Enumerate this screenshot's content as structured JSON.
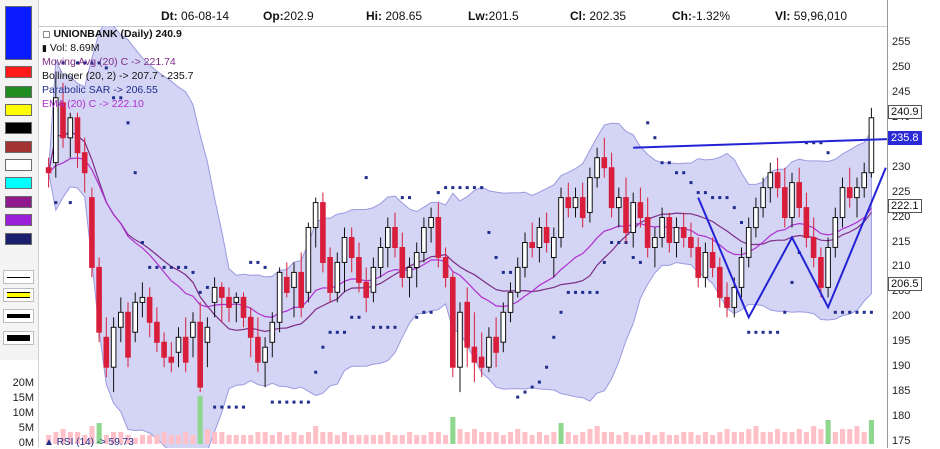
{
  "toolbar": {
    "colors": [
      "#0a1cff",
      "#ff1a1a",
      "#1e8c1e",
      "#ffff00",
      "#000000",
      "#a33333",
      "#ffffff",
      "#00ffff",
      "#8e1a8e",
      "#9b1fd6",
      "#1a1f6e"
    ],
    "line_styles": [
      "thin",
      "thick-yellow",
      "medium",
      "thick"
    ]
  },
  "info": {
    "date_label": "Dt:",
    "date": "06-08-14",
    "open_label": "Op:",
    "open": "202.9",
    "high_label": "Hi:",
    "high": "208.65",
    "low_label": "Lw:",
    "low": "201.5",
    "close_label": "Cl:",
    "close": "202.35",
    "change_label": "Ch:",
    "change": "-1.32%",
    "volume_label": "Vl:",
    "volume": "59,96,010"
  },
  "legend": {
    "title": "UNIONBANK (Daily) 240.9",
    "vol": "Vol: 8.69M",
    "ma": "Moving Avg (20) C -> 221.74",
    "bb": "Bollinger (20, 2) -> 207.7 - 235.7",
    "psar": "Parabolic SAR -> 206.55",
    "ema": "EMA (20) C -> 222.10",
    "rsi": "RSI (14) -> 59.73"
  },
  "colors": {
    "up": "#111111",
    "down": "#d81e3a",
    "band_fill": "#c6c6f2",
    "band_line": "#9a9ae0",
    "ma": "#7d2d86",
    "ema": "#b030d0",
    "sar": "#1f2e8c",
    "trend": "#2323d6",
    "vol": "#ffc0c8",
    "vol_hi": "#8fd68f",
    "price_tag": "#2a2ad6"
  },
  "chart_data": {
    "type": "candlestick",
    "y_axis_ticks": [
      255,
      250,
      245,
      240,
      235,
      230,
      225,
      220,
      215,
      210,
      205,
      200,
      195,
      190,
      185,
      180,
      175
    ],
    "ylim": [
      175,
      257
    ],
    "volume_axis_ticks": [
      "20M",
      "15M",
      "10M",
      "5M",
      "0M"
    ],
    "volume_ylim": [
      0,
      25
    ],
    "last_labels": [
      {
        "text": "240.9",
        "value": 240.9,
        "style": "outline"
      },
      {
        "text": "235.8",
        "value": 235.8,
        "style": "filled"
      },
      {
        "text": "222.1",
        "value": 222.1,
        "style": "outline"
      },
      {
        "text": "206.5",
        "value": 206.5,
        "style": "outline"
      }
    ],
    "ohlc": [
      [
        230,
        232,
        226,
        229
      ],
      [
        231,
        248,
        228,
        244
      ],
      [
        243,
        247,
        234,
        236
      ],
      [
        236,
        241,
        232,
        240
      ],
      [
        240,
        241,
        230,
        233
      ],
      [
        233,
        236,
        225,
        229
      ],
      [
        224,
        226,
        208,
        210
      ],
      [
        210,
        212,
        195,
        197
      ],
      [
        196,
        200,
        188,
        190
      ],
      [
        190,
        200,
        185,
        198
      ],
      [
        198,
        204,
        195,
        201
      ],
      [
        201,
        203,
        190,
        192
      ],
      [
        197,
        205,
        195,
        203
      ],
      [
        203,
        207,
        200,
        204
      ],
      [
        204,
        206,
        196,
        199
      ],
      [
        199,
        202,
        193,
        195
      ],
      [
        195,
        197,
        190,
        192
      ],
      [
        192,
        195,
        189,
        191
      ],
      [
        193,
        198,
        190,
        196
      ],
      [
        196,
        200,
        189,
        191
      ],
      [
        196,
        201,
        192,
        199
      ],
      [
        199,
        203,
        185,
        186
      ],
      [
        195,
        200,
        190,
        198
      ],
      [
        203,
        208,
        200,
        206
      ],
      [
        206,
        207,
        199,
        204
      ],
      [
        204,
        206,
        199,
        202
      ],
      [
        203,
        205,
        199,
        204
      ],
      [
        204,
        205,
        198,
        200
      ],
      [
        200,
        202,
        192,
        196
      ],
      [
        196,
        200,
        189,
        191
      ],
      [
        191,
        196,
        186,
        194
      ],
      [
        195,
        201,
        192,
        199
      ],
      [
        199,
        210,
        197,
        209
      ],
      [
        208,
        211,
        204,
        205
      ],
      [
        206,
        211,
        200,
        209
      ],
      [
        209,
        213,
        200,
        202
      ],
      [
        205,
        219,
        203,
        218
      ],
      [
        218,
        224,
        214,
        223
      ],
      [
        223,
        225,
        209,
        211
      ],
      [
        212,
        214,
        203,
        205
      ],
      [
        205,
        213,
        203,
        211
      ],
      [
        211,
        218,
        205,
        216
      ],
      [
        216,
        218,
        209,
        212
      ],
      [
        212,
        215,
        205,
        207
      ],
      [
        207,
        210,
        201,
        204
      ],
      [
        205,
        212,
        203,
        210
      ],
      [
        210,
        216,
        208,
        214
      ],
      [
        214,
        220,
        210,
        218
      ],
      [
        218,
        221,
        212,
        214
      ],
      [
        214,
        217,
        206,
        208
      ],
      [
        208,
        212,
        204,
        210
      ],
      [
        210,
        215,
        206,
        213
      ],
      [
        213,
        220,
        211,
        218
      ],
      [
        218,
        222,
        215,
        220
      ],
      [
        220,
        223,
        210,
        212
      ],
      [
        212,
        214,
        206,
        208
      ],
      [
        208,
        209,
        188,
        190
      ],
      [
        190,
        203,
        185,
        201
      ],
      [
        203,
        206,
        190,
        194
      ],
      [
        194,
        201,
        187,
        191
      ],
      [
        192,
        197,
        188,
        190
      ],
      [
        190,
        198,
        189,
        196
      ],
      [
        196,
        200,
        190,
        193
      ],
      [
        195,
        203,
        193,
        201
      ],
      [
        201,
        207,
        199,
        205
      ],
      [
        205,
        212,
        204,
        210
      ],
      [
        210,
        217,
        208,
        215
      ],
      [
        215,
        219,
        212,
        214
      ],
      [
        214,
        220,
        211,
        218
      ],
      [
        218,
        221,
        213,
        215
      ],
      [
        212,
        218,
        208,
        216
      ],
      [
        216,
        226,
        214,
        224
      ],
      [
        224,
        227,
        220,
        222
      ],
      [
        222,
        226,
        220,
        224
      ],
      [
        224,
        227,
        218,
        220
      ],
      [
        221,
        230,
        219,
        228
      ],
      [
        228,
        234,
        226,
        232
      ],
      [
        232,
        236,
        228,
        230
      ],
      [
        230,
        233,
        220,
        222
      ],
      [
        222,
        226,
        218,
        224
      ],
      [
        224,
        228,
        215,
        217
      ],
      [
        217,
        225,
        214,
        223
      ],
      [
        223,
        226,
        218,
        220
      ],
      [
        220,
        224,
        212,
        214
      ],
      [
        214,
        218,
        210,
        216
      ],
      [
        216,
        222,
        214,
        220
      ],
      [
        220,
        221,
        213,
        215
      ],
      [
        215,
        220,
        212,
        218
      ],
      [
        218,
        221,
        214,
        216
      ],
      [
        216,
        219,
        212,
        214
      ],
      [
        214,
        216,
        206,
        208
      ],
      [
        208,
        215,
        206,
        213
      ],
      [
        213,
        216,
        208,
        210
      ],
      [
        210,
        212,
        202,
        204
      ],
      [
        204,
        207,
        200,
        202
      ],
      [
        202,
        208,
        200,
        206
      ],
      [
        206,
        214,
        204,
        212
      ],
      [
        212,
        220,
        210,
        218
      ],
      [
        218,
        224,
        216,
        222
      ],
      [
        222,
        228,
        220,
        226
      ],
      [
        226,
        231,
        223,
        229
      ],
      [
        229,
        232,
        224,
        226
      ],
      [
        226,
        230,
        218,
        220
      ],
      [
        220,
        229,
        218,
        227
      ],
      [
        227,
        230,
        220,
        222
      ],
      [
        222,
        225,
        214,
        216
      ],
      [
        216,
        220,
        210,
        212
      ],
      [
        212,
        214,
        204,
        206
      ],
      [
        206,
        216,
        204,
        214
      ],
      [
        214,
        222,
        212,
        220
      ],
      [
        220,
        228,
        218,
        226
      ],
      [
        226,
        230,
        222,
        224
      ],
      [
        224,
        228,
        220,
        226
      ],
      [
        226,
        231,
        224,
        229
      ],
      [
        229,
        242,
        228,
        240
      ]
    ],
    "volume": [
      3,
      4,
      5,
      4,
      4,
      3,
      6,
      7,
      3,
      4,
      4,
      3,
      2,
      3,
      3,
      3,
      4,
      3,
      3,
      4,
      3,
      16,
      5,
      4,
      4,
      3,
      3,
      3,
      3,
      4,
      4,
      3,
      4,
      3,
      4,
      3,
      4,
      6,
      4,
      4,
      3,
      4,
      3,
      3,
      3,
      3,
      3,
      4,
      3,
      3,
      4,
      3,
      3,
      4,
      4,
      3,
      9,
      5,
      4,
      5,
      4,
      4,
      4,
      3,
      4,
      5,
      4,
      3,
      4,
      3,
      4,
      7,
      4,
      3,
      4,
      5,
      6,
      4,
      4,
      3,
      4,
      3,
      3,
      4,
      3,
      4,
      3,
      3,
      4,
      4,
      3,
      4,
      3,
      4,
      5,
      4,
      4,
      5,
      6,
      4,
      4,
      5,
      4,
      4,
      5,
      4,
      6,
      5,
      8,
      4,
      5,
      5,
      6,
      4,
      8
    ],
    "trendlines": [
      {
        "name": "resistance",
        "points": [
          [
            81,
            234
          ],
          [
            118,
            235.8
          ]
        ]
      },
      {
        "name": "pattern-left",
        "points": [
          [
            90,
            224
          ],
          [
            97,
            200
          ],
          [
            103,
            216
          ],
          [
            108,
            202
          ],
          [
            116,
            230
          ]
        ]
      }
    ]
  }
}
